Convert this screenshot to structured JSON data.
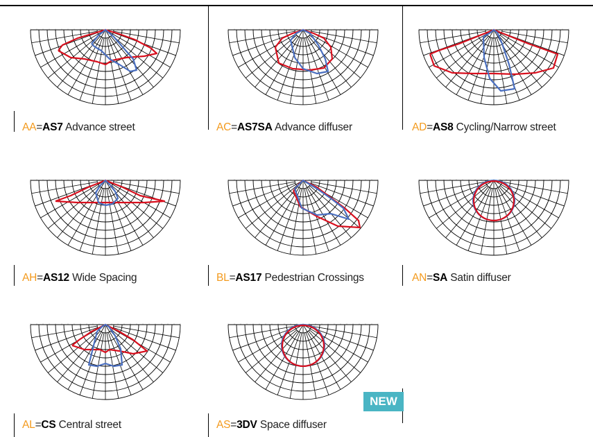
{
  "badge": {
    "label": "NEW"
  },
  "colors": {
    "accent": "#f39a1d",
    "curve_a": "#d8101e",
    "curve_b": "#4a6fc0",
    "badge": "#4ab5c4"
  },
  "diagrams": [
    {
      "code": "AA",
      "sep": "=",
      "product": "AS7",
      "description": "Advance street",
      "shape": "AA"
    },
    {
      "code": "AC",
      "sep": "=",
      "product": "AS7SA",
      "description": "Advance diffuser",
      "shape": "AC"
    },
    {
      "code": "AD",
      "sep": "=",
      "product": "AS8",
      "description": "Cycling/Narrow street",
      "shape": "AD"
    },
    {
      "code": "AH",
      "sep": "=",
      "product": "AS12",
      "description": "Wide Spacing",
      "shape": "AH"
    },
    {
      "code": "BL",
      "sep": "=",
      "product": "AS17",
      "description": "Pedestrian Crossings",
      "shape": "BL"
    },
    {
      "code": "AN",
      "sep": "=",
      "product": "SA",
      "description": "Satin diffuser",
      "shape": "AN"
    },
    {
      "code": "AL",
      "sep": "=",
      "product": "CS",
      "description": "Central street",
      "shape": "AL"
    },
    {
      "code": "AS",
      "sep": "=",
      "product": "3DV",
      "description": "Space diffuser",
      "shape": "AS"
    }
  ]
}
